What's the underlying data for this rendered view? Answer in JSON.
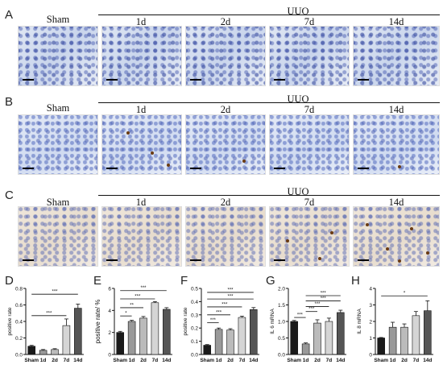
{
  "rows": [
    {
      "letter": "A",
      "group": "UUO",
      "labels": [
        "Sham",
        "1d",
        "2d",
        "7d",
        "14d"
      ]
    },
    {
      "letter": "B",
      "group": "UUO",
      "labels": [
        "Sham",
        "1d",
        "2d",
        "7d",
        "14d"
      ]
    },
    {
      "letter": "C",
      "group": "UUO",
      "labels": [
        "Sham",
        "1d",
        "2d",
        "7d",
        "14d"
      ]
    }
  ],
  "colors": {
    "black": "#111111",
    "dark": "#222222",
    "bar_colors": [
      "#1a1a1a",
      "#999999",
      "#bbbbbb",
      "#d5d5d5",
      "#555555"
    ]
  },
  "chart_data": [
    {
      "panel": "D",
      "type": "bar",
      "categories": [
        "Sham",
        "1d",
        "2d",
        "7d",
        "14d"
      ],
      "values": [
        0.1,
        0.05,
        0.06,
        0.35,
        0.56
      ],
      "errors": [
        0.01,
        0.01,
        0.01,
        0.08,
        0.05
      ],
      "ylabel": "positive rate",
      "ylim": [
        0,
        0.8
      ],
      "yticks": [
        0.0,
        0.2,
        0.4,
        0.6,
        0.8
      ],
      "ytick_labels": [
        "0.0",
        "0.2",
        "0.4",
        "0.6",
        "0.8"
      ],
      "sig": [
        {
          "from": 0,
          "to": 4,
          "label": "***",
          "level": 0.73
        },
        {
          "from": 0,
          "to": 3,
          "label": "***",
          "level": 0.47
        }
      ]
    },
    {
      "panel": "E",
      "type": "bar",
      "categories": [
        "Sham",
        "1d",
        "2d",
        "7d",
        "14d"
      ],
      "values": [
        2.0,
        3.0,
        3.3,
        4.7,
        4.1
      ],
      "errors": [
        0.1,
        0.1,
        0.15,
        0.1,
        0.15
      ],
      "ylabel": "positive rate/ %",
      "ylim": [
        0,
        6
      ],
      "yticks": [
        0,
        2,
        4,
        6
      ],
      "ytick_labels": [
        "0",
        "2",
        "4",
        "6"
      ],
      "sig": [
        {
          "from": 0,
          "to": 1,
          "label": "*",
          "level": 3.5
        },
        {
          "from": 0,
          "to": 2,
          "label": "**",
          "level": 4.25
        },
        {
          "from": 0,
          "to": 3,
          "label": "***",
          "level": 5.05
        },
        {
          "from": 0,
          "to": 4,
          "label": "***",
          "level": 5.8
        }
      ]
    },
    {
      "panel": "F",
      "type": "bar",
      "categories": [
        "Sham",
        "1d",
        "2d",
        "7d",
        "14d"
      ],
      "values": [
        0.07,
        0.19,
        0.185,
        0.28,
        0.34
      ],
      "errors": [
        0.005,
        0.01,
        0.01,
        0.01,
        0.015
      ],
      "ylabel": "positive rate",
      "ylim": [
        0,
        0.5
      ],
      "yticks": [
        0.0,
        0.1,
        0.2,
        0.3,
        0.4,
        0.5
      ],
      "ytick_labels": [
        "0.0",
        "0.1",
        "0.2",
        "0.3",
        "0.4",
        "0.5"
      ],
      "sig": [
        {
          "from": 0,
          "to": 1,
          "label": "***",
          "level": 0.24
        },
        {
          "from": 0,
          "to": 2,
          "label": "***",
          "level": 0.3
        },
        {
          "from": 0,
          "to": 3,
          "label": "***",
          "level": 0.36
        },
        {
          "from": 0,
          "to": 4,
          "label": "***",
          "level": 0.42
        },
        {
          "from": 0,
          "to": 4,
          "label": "***",
          "level": 0.47
        }
      ]
    },
    {
      "panel": "G",
      "type": "bar",
      "categories": [
        "Sham",
        "1d",
        "2d",
        "7d",
        "14d"
      ],
      "values": [
        1.0,
        0.32,
        0.95,
        1.0,
        1.27
      ],
      "errors": [
        0.03,
        0.03,
        0.1,
        0.1,
        0.07
      ],
      "ylabel": "IL 6 mRNA",
      "ylim": [
        0,
        2.0
      ],
      "yticks": [
        0.0,
        0.5,
        1.0,
        1.5,
        2.0
      ],
      "ytick_labels": [
        "0.0",
        "0.5",
        "1.0",
        "1.5",
        "2.0"
      ],
      "sig": [
        {
          "from": 0,
          "to": 1,
          "label": "***",
          "level": 1.12
        },
        {
          "from": 1,
          "to": 2,
          "label": "***",
          "level": 1.3
        },
        {
          "from": 1,
          "to": 3,
          "label": "***",
          "level": 1.45
        },
        {
          "from": 1,
          "to": 4,
          "label": "***",
          "level": 1.62
        },
        {
          "from": 1,
          "to": 4,
          "label": "***",
          "level": 1.78
        }
      ]
    },
    {
      "panel": "H",
      "type": "bar",
      "categories": [
        "Sham",
        "1d",
        "2d",
        "7d",
        "14d"
      ],
      "values": [
        1.0,
        1.65,
        1.65,
        2.35,
        2.65
      ],
      "errors": [
        0.03,
        0.3,
        0.2,
        0.25,
        0.6
      ],
      "ylabel": "IL 8 mRNA",
      "ylim": [
        0,
        4
      ],
      "yticks": [
        0,
        1,
        2,
        3,
        4
      ],
      "ytick_labels": [
        "0",
        "1",
        "2",
        "3",
        "4"
      ],
      "sig": [
        {
          "from": 0,
          "to": 4,
          "label": "*",
          "level": 3.55
        }
      ]
    }
  ]
}
